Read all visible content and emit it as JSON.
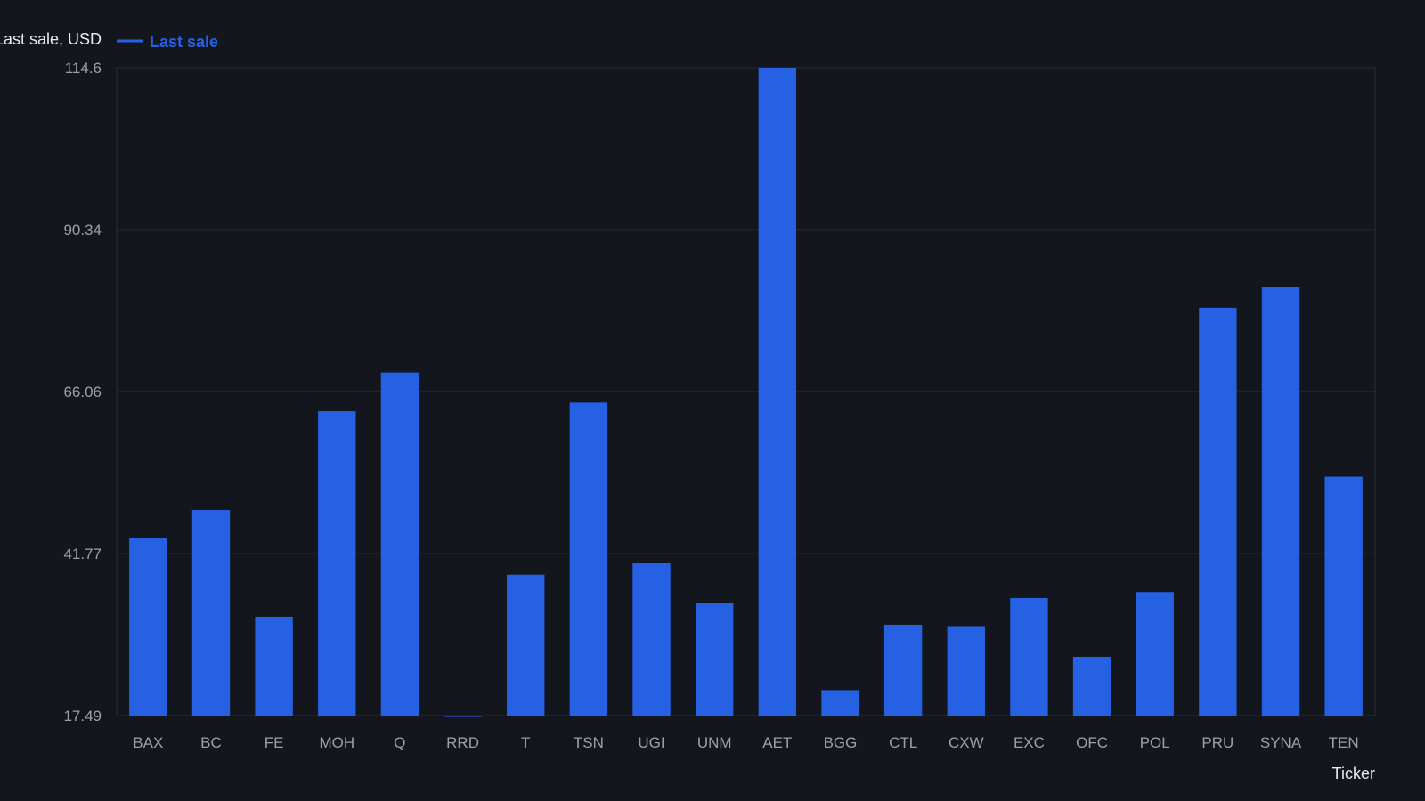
{
  "chart_data": {
    "type": "bar",
    "ylabel": "Last sale, USD",
    "xlabel": "Ticker",
    "legend": {
      "entries": [
        "Last sale"
      ],
      "placement": "top-left"
    },
    "grid": true,
    "ylim": [
      17.49,
      114.6
    ],
    "yticks": [
      17.49,
      41.77,
      66.06,
      90.34,
      114.6
    ],
    "ytick_labels": [
      "17.49",
      "41.77",
      "66.06",
      "90.34",
      "114.6"
    ],
    "categories": [
      "BAX",
      "BC",
      "FE",
      "MOH",
      "Q",
      "RRD",
      "T",
      "TSN",
      "UGI",
      "UNM",
      "AET",
      "BGG",
      "CTL",
      "CXW",
      "EXC",
      "OFC",
      "POL",
      "PRU",
      "SYNA",
      "TEN"
    ],
    "series": [
      {
        "name": "Last sale",
        "color": "#2660e3",
        "values": [
          44.1,
          48.3,
          32.3,
          63.1,
          68.9,
          17.35,
          38.6,
          64.4,
          40.3,
          34.3,
          114.6,
          21.3,
          31.1,
          30.9,
          35.1,
          26.3,
          36.0,
          78.6,
          81.7,
          53.3
        ]
      }
    ]
  }
}
